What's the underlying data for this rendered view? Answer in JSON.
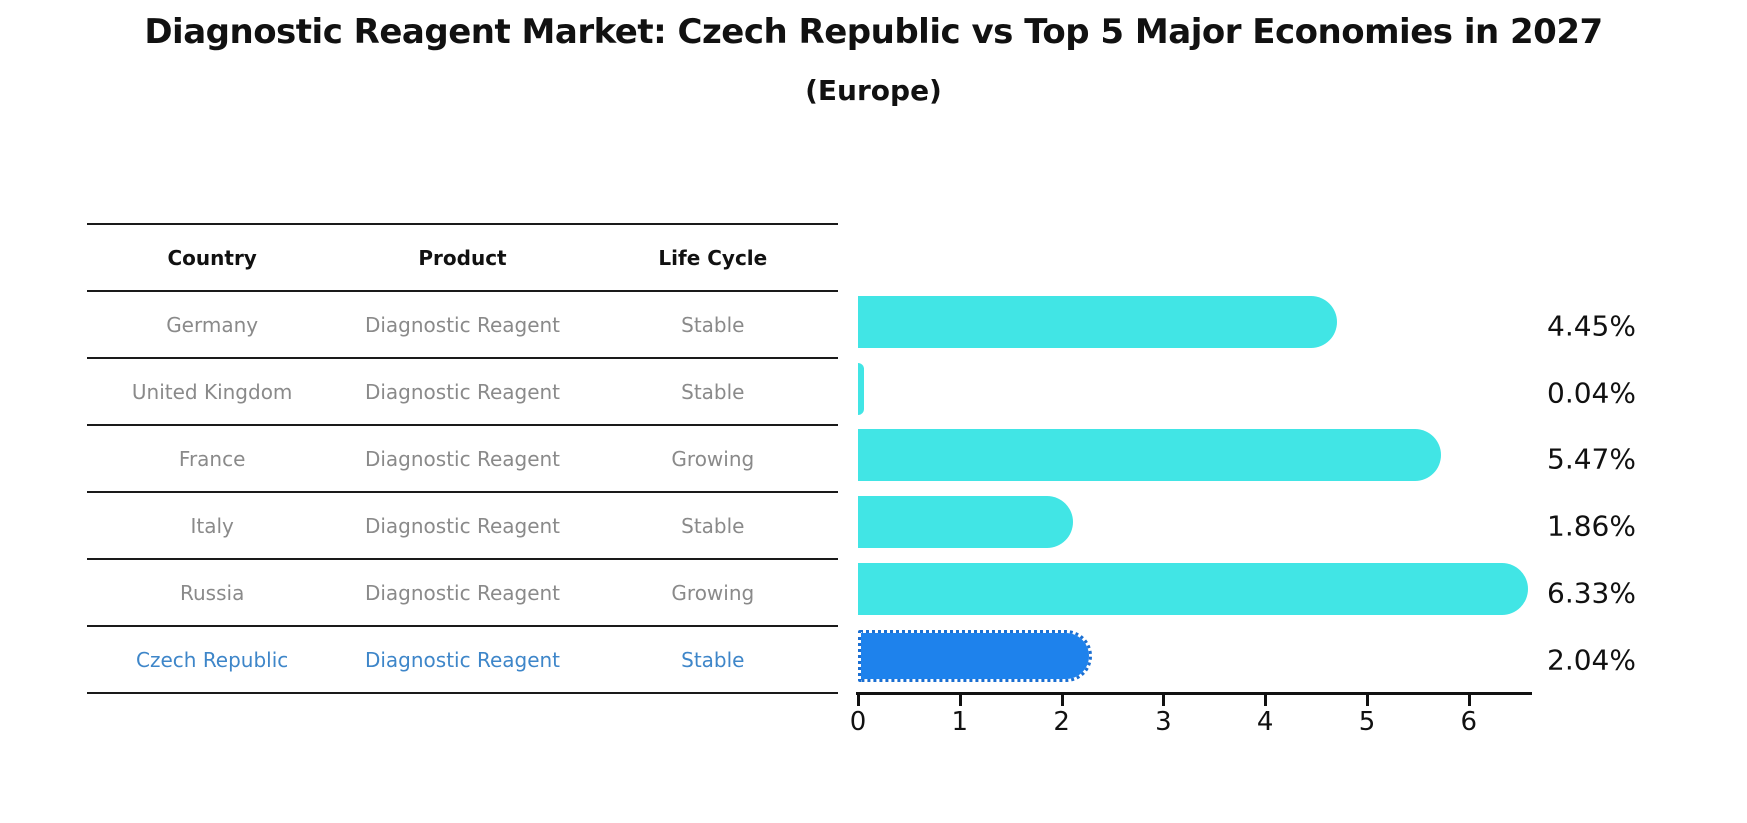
{
  "title": "Diagnostic Reagent Market: Czech Republic vs Top 5 Major Economies in 2027",
  "subtitle": "(Europe)",
  "table": {
    "headers": [
      "Country",
      "Product",
      "Life Cycle"
    ],
    "rows": [
      {
        "country": "Germany",
        "product": "Diagnostic Reagent",
        "life_cycle": "Stable",
        "highlight": false
      },
      {
        "country": "United Kingdom",
        "product": "Diagnostic Reagent",
        "life_cycle": "Stable",
        "highlight": false
      },
      {
        "country": "France",
        "product": "Diagnostic Reagent",
        "life_cycle": "Growing",
        "highlight": false
      },
      {
        "country": "Italy",
        "product": "Diagnostic Reagent",
        "life_cycle": "Stable",
        "highlight": false
      },
      {
        "country": "Russia",
        "product": "Diagnostic Reagent",
        "life_cycle": "Growing",
        "highlight": false
      },
      {
        "country": "Czech Republic",
        "product": "Diagnostic Reagent",
        "life_cycle": "Stable",
        "highlight": true
      }
    ]
  },
  "chart_data": {
    "type": "bar",
    "orientation": "horizontal",
    "title": "Diagnostic Reagent Market: Czech Republic vs Top 5 Major Economies in 2027",
    "subtitle": "(Europe)",
    "categories": [
      "Germany",
      "United Kingdom",
      "France",
      "Italy",
      "Russia",
      "Czech Republic"
    ],
    "values": [
      4.45,
      0.04,
      5.47,
      1.86,
      6.33,
      2.04
    ],
    "value_labels": [
      "4.45%",
      "0.04%",
      "5.47%",
      "1.86%",
      "6.33%",
      "2.04%"
    ],
    "highlight_index": 5,
    "xlim": [
      0,
      6.62
    ],
    "x_ticks": [
      "0",
      "1",
      "2",
      "3",
      "4",
      "5",
      "6"
    ],
    "grid": false,
    "legend": false,
    "bar_color": "#41e5e5",
    "highlight_bar_color": "#1e82ec",
    "highlight_text_color": "#3e86c9"
  }
}
